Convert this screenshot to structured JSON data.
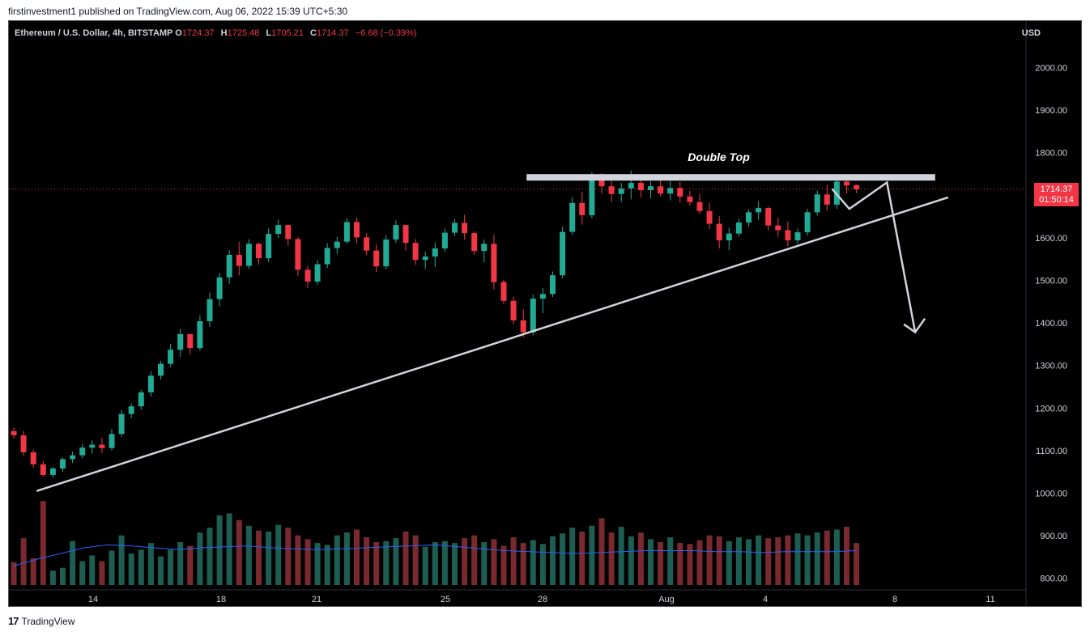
{
  "publish_line": "firstinvestment1 published on TradingView.com, Aug 06, 2022 15:39 UTC+5:30",
  "footer_logo": "TradingView",
  "header": {
    "symbol": "Ethereum / U.S. Dollar, 4h, BITSTAMP",
    "o_label": "O",
    "o_value": "1724.37",
    "h_label": "H",
    "h_value": "1725.48",
    "l_label": "L",
    "l_value": "1705.21",
    "c_label": "C",
    "c_value": "1714.37",
    "change": "−6.68 (−0.39%)"
  },
  "axis_currency": "USD",
  "price_tag": {
    "price": "1714.37",
    "countdown": "01:50:14"
  },
  "colors": {
    "up": "#22ab94",
    "down": "#f23645",
    "volume_up": "#1e5e52",
    "volume_down": "#7a2a2e",
    "ma_line": "#2962ff",
    "annotation": "#d1d4dc"
  },
  "chart_data": {
    "type": "candlestick",
    "ylim": [
      770,
      2100
    ],
    "y_ticks": [
      "2000.00",
      "1900.00",
      "1800.00",
      "1700.00",
      "1600.00",
      "1500.00",
      "1400.00",
      "1300.00",
      "1200.00",
      "1100.00",
      "1000.00",
      "900.00",
      "800.00"
    ],
    "x_ticks": [
      "14",
      "18",
      "21",
      "25",
      "28",
      "Aug",
      "4",
      "8",
      "11"
    ],
    "last_price": 1714.37,
    "annotation_label": "Double Top",
    "resistance_level": 1742,
    "trendline": [
      {
        "x": 2.5,
        "y": 1005
      },
      {
        "x": 59.7,
        "y": 1695
      }
    ],
    "projection_path": [
      {
        "x": 52.3,
        "y": 1715
      },
      {
        "x": 53.4,
        "y": 1668
      },
      {
        "x": 55.8,
        "y": 1730
      },
      {
        "x": 57.6,
        "y": 1378
      }
    ],
    "volume_ma": [
      20,
      27,
      33,
      39,
      42,
      41,
      39,
      37,
      39,
      40,
      41,
      39,
      38,
      37,
      38,
      39,
      40,
      41,
      42,
      40,
      38,
      36,
      35,
      34,
      33,
      34,
      35,
      36,
      36,
      36,
      35,
      35,
      34,
      35,
      35,
      35,
      36
    ],
    "candles": [
      [
        1146,
        1154,
        1128,
        1136,
        24
      ],
      [
        1136,
        1146,
        1087,
        1096,
        49
      ],
      [
        1096,
        1102,
        1060,
        1068,
        28
      ],
      [
        1068,
        1076,
        1039,
        1043,
        88
      ],
      [
        1043,
        1062,
        1036,
        1058,
        15
      ],
      [
        1058,
        1084,
        1050,
        1080,
        18
      ],
      [
        1080,
        1098,
        1071,
        1089,
        46
      ],
      [
        1089,
        1116,
        1082,
        1107,
        25
      ],
      [
        1107,
        1124,
        1093,
        1114,
        31
      ],
      [
        1114,
        1130,
        1094,
        1106,
        25
      ],
      [
        1106,
        1151,
        1100,
        1139,
        36
      ],
      [
        1139,
        1196,
        1132,
        1186,
        52
      ],
      [
        1186,
        1211,
        1177,
        1204,
        33
      ],
      [
        1204,
        1243,
        1196,
        1237,
        37
      ],
      [
        1237,
        1287,
        1227,
        1276,
        44
      ],
      [
        1276,
        1311,
        1267,
        1304,
        30
      ],
      [
        1304,
        1351,
        1297,
        1337,
        37
      ],
      [
        1337,
        1386,
        1320,
        1374,
        45
      ],
      [
        1374,
        1361,
        1326,
        1341,
        41
      ],
      [
        1341,
        1418,
        1335,
        1404,
        55
      ],
      [
        1404,
        1471,
        1391,
        1456,
        60
      ],
      [
        1456,
        1518,
        1439,
        1507,
        73
      ],
      [
        1507,
        1571,
        1492,
        1560,
        75
      ],
      [
        1560,
        1591,
        1512,
        1534,
        68
      ],
      [
        1534,
        1597,
        1527,
        1586,
        62
      ],
      [
        1586,
        1589,
        1537,
        1552,
        57
      ],
      [
        1552,
        1622,
        1543,
        1609,
        56
      ],
      [
        1609,
        1643,
        1599,
        1630,
        63
      ],
      [
        1630,
        1632,
        1581,
        1597,
        60
      ],
      [
        1597,
        1602,
        1511,
        1525,
        52
      ],
      [
        1525,
        1534,
        1482,
        1497,
        48
      ],
      [
        1497,
        1548,
        1490,
        1538,
        44
      ],
      [
        1538,
        1587,
        1529,
        1576,
        42
      ],
      [
        1576,
        1602,
        1562,
        1591,
        52
      ],
      [
        1591,
        1647,
        1586,
        1637,
        55
      ],
      [
        1637,
        1648,
        1587,
        1601,
        58
      ],
      [
        1601,
        1611,
        1559,
        1570,
        50
      ],
      [
        1570,
        1584,
        1520,
        1533,
        45
      ],
      [
        1533,
        1606,
        1526,
        1596,
        46
      ],
      [
        1596,
        1641,
        1588,
        1630,
        49
      ],
      [
        1630,
        1620,
        1571,
        1588,
        56
      ],
      [
        1588,
        1597,
        1536,
        1548,
        52
      ],
      [
        1548,
        1568,
        1527,
        1556,
        40
      ],
      [
        1556,
        1589,
        1531,
        1575,
        45
      ],
      [
        1575,
        1622,
        1567,
        1612,
        46
      ],
      [
        1612,
        1644,
        1604,
        1635,
        44
      ],
      [
        1635,
        1654,
        1596,
        1611,
        49
      ],
      [
        1611,
        1615,
        1560,
        1569,
        52
      ],
      [
        1569,
        1596,
        1542,
        1586,
        45
      ],
      [
        1586,
        1607,
        1479,
        1496,
        48
      ],
      [
        1496,
        1502,
        1444,
        1452,
        41
      ],
      [
        1452,
        1462,
        1397,
        1406,
        50
      ],
      [
        1406,
        1432,
        1366,
        1378,
        44
      ],
      [
        1378,
        1467,
        1371,
        1457,
        47
      ],
      [
        1457,
        1482,
        1423,
        1468,
        43
      ],
      [
        1468,
        1521,
        1461,
        1512,
        51
      ],
      [
        1512,
        1626,
        1505,
        1614,
        54
      ],
      [
        1614,
        1696,
        1607,
        1682,
        60
      ],
      [
        1682,
        1708,
        1631,
        1653,
        56
      ],
      [
        1653,
        1754,
        1646,
        1738,
        62
      ],
      [
        1738,
        1752,
        1704,
        1721,
        70
      ],
      [
        1721,
        1738,
        1684,
        1703,
        55
      ],
      [
        1703,
        1729,
        1684,
        1716,
        61
      ],
      [
        1716,
        1758,
        1690,
        1729,
        51
      ],
      [
        1729,
        1748,
        1694,
        1712,
        55
      ],
      [
        1712,
        1733,
        1693,
        1721,
        48
      ],
      [
        1721,
        1741,
        1697,
        1704,
        45
      ],
      [
        1704,
        1734,
        1688,
        1717,
        50
      ],
      [
        1717,
        1731,
        1683,
        1697,
        44
      ],
      [
        1697,
        1710,
        1676,
        1684,
        43
      ],
      [
        1684,
        1703,
        1656,
        1663,
        47
      ],
      [
        1663,
        1683,
        1621,
        1633,
        52
      ],
      [
        1633,
        1651,
        1575,
        1594,
        51
      ],
      [
        1594,
        1624,
        1571,
        1610,
        46
      ],
      [
        1610,
        1645,
        1603,
        1636,
        50
      ],
      [
        1636,
        1667,
        1626,
        1660,
        48
      ],
      [
        1660,
        1686,
        1642,
        1670,
        52
      ],
      [
        1670,
        1673,
        1617,
        1629,
        49
      ],
      [
        1629,
        1647,
        1602,
        1618,
        50
      ],
      [
        1618,
        1638,
        1580,
        1594,
        52
      ],
      [
        1594,
        1622,
        1586,
        1613,
        54
      ],
      [
        1613,
        1668,
        1605,
        1660,
        52
      ],
      [
        1660,
        1711,
        1652,
        1702,
        55
      ],
      [
        1702,
        1725,
        1663,
        1678,
        57
      ],
      [
        1678,
        1746,
        1668,
        1732,
        58
      ],
      [
        1732,
        1738,
        1704,
        1723,
        61
      ],
      [
        1724,
        1725,
        1705,
        1714,
        44
      ]
    ]
  }
}
